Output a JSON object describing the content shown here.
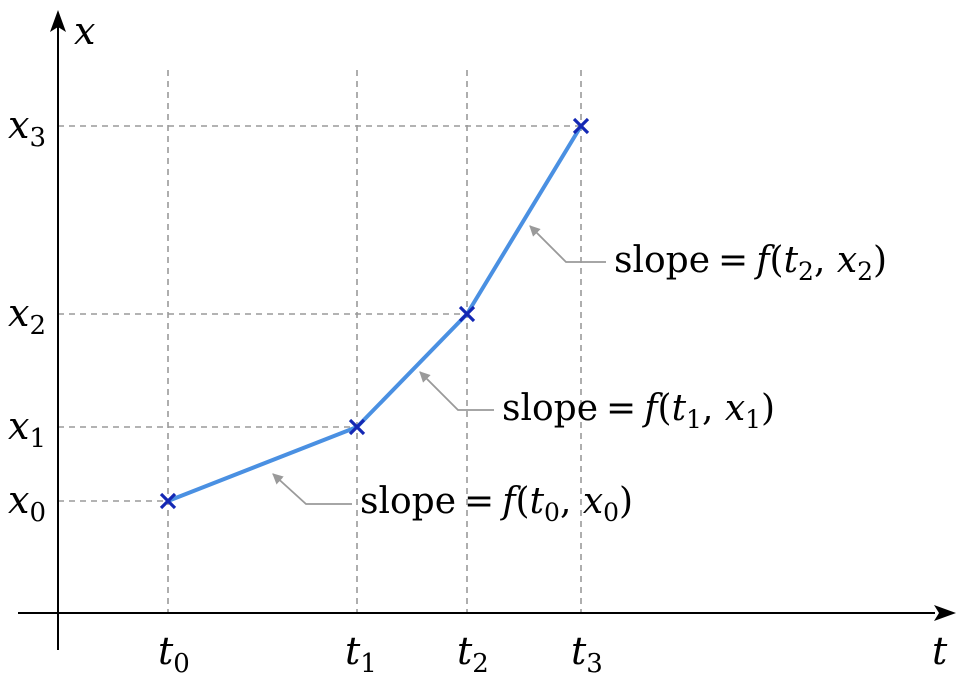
{
  "axes": {
    "x_axis_label": "t",
    "y_axis_label": "x"
  },
  "points": [
    {
      "t_label": "t",
      "t_sub": "0",
      "x_label": "x",
      "x_sub": "0"
    },
    {
      "t_label": "t",
      "t_sub": "1",
      "x_label": "x",
      "x_sub": "1"
    },
    {
      "t_label": "t",
      "t_sub": "2",
      "x_label": "x",
      "x_sub": "2"
    },
    {
      "t_label": "t",
      "t_sub": "3",
      "x_label": "x",
      "x_sub": "3"
    }
  ],
  "slopes": [
    {
      "word": "slope",
      "equals": "=",
      "func": "f",
      "t": "t",
      "t_sub": "0",
      "x": "x",
      "x_sub": "0"
    },
    {
      "word": "slope",
      "equals": "=",
      "func": "f",
      "t": "t",
      "t_sub": "1",
      "x": "x",
      "x_sub": "1"
    },
    {
      "word": "slope",
      "equals": "=",
      "func": "f",
      "t": "t",
      "t_sub": "2",
      "x": "x",
      "x_sub": "2"
    }
  ],
  "colors": {
    "curve": "#4a90e2",
    "marker": "#1428b4",
    "grid": "#9a9a9a"
  }
}
